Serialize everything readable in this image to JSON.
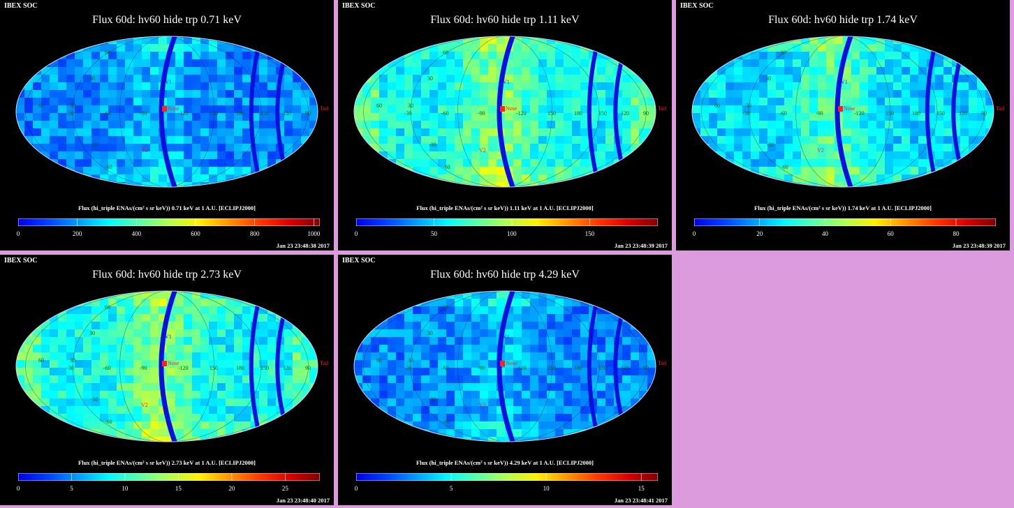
{
  "panels": [
    {
      "header": "IBEX SOC",
      "title": "Flux 60d: hv60 hide trp 0.71 keV",
      "cb_label": "Flux (hi_triple ENAs/(cm² s sr keV)) 0.71 keV at 1 A.U. [ECLIPJ2000]",
      "ticks": [
        "0",
        "200",
        "400",
        "600",
        "800",
        "1000"
      ],
      "tick_pos": [
        0,
        0.196,
        0.392,
        0.588,
        0.784,
        0.98
      ],
      "timestamp": "Jan 23 23:48:38 2017",
      "scheme": "low"
    },
    {
      "header": "IBEX SOC",
      "title": "Flux 60d: hv60 hide trp 1.11 keV",
      "cb_label": "Flux (hi_triple ENAs/(cm² s sr keV)) 1.11 keV at 1 A.U. [ECLIPJ2000]",
      "ticks": [
        "0",
        "50",
        "100",
        "150"
      ],
      "tick_pos": [
        0,
        0.258,
        0.516,
        0.774
      ],
      "timestamp": "Jan 23 23:48:39 2017",
      "scheme": "high"
    },
    {
      "header": "IBEX SOC",
      "title": "Flux 60d: hv60 hide trp 1.74 keV",
      "cb_label": "Flux (hi_triple ENAs/(cm² s sr keV)) 1.74 keV at 1 A.U. [ECLIPJ2000]",
      "ticks": [
        "0",
        "20",
        "40",
        "60",
        "80"
      ],
      "tick_pos": [
        0,
        0.217,
        0.434,
        0.651,
        0.868
      ],
      "timestamp": "Jan 23 23:48:39 2017",
      "scheme": "mid"
    },
    {
      "header": "IBEX SOC",
      "title": "Flux 60d: hv60 hide trp 2.73 keV",
      "cb_label": "Flux (hi_triple ENAs/(cm² s sr keV)) 2.73 keV at 1 A.U. [ECLIPJ2000]",
      "ticks": [
        "0",
        "5",
        "10",
        "15",
        "20",
        "25"
      ],
      "tick_pos": [
        0,
        0.177,
        0.354,
        0.531,
        0.708,
        0.885
      ],
      "timestamp": "Jan 23 23:48:40 2017",
      "scheme": "high"
    },
    {
      "header": "IBEX SOC",
      "title": "Flux 60d: hv60 hide trp 4.29 keV",
      "cb_label": "Flux (hi_triple ENAs/(cm² s sr keV)) 4.29 keV at 1 A.U. [ECLIPJ2000]",
      "ticks": [
        "0",
        "5",
        "10",
        "15"
      ],
      "tick_pos": [
        0,
        0.315,
        0.63,
        0.945
      ],
      "timestamp": "Jan 23 23:48:41 2017",
      "scheme": "low"
    }
  ],
  "map_labels": {
    "v1": "V1",
    "v2": "V2",
    "nose": "Nose",
    "tail": "Tail",
    "lon": [
      "-90",
      "-60",
      "-30",
      "-120",
      "150",
      "180",
      "150",
      "120",
      "90",
      "60",
      "30"
    ],
    "lat": [
      "60",
      "30",
      "-30",
      "-60"
    ]
  },
  "colors": {
    "background": "#dc9bdc",
    "panel": "#000000",
    "text": "#ffffff",
    "marker": "#ff2020"
  }
}
